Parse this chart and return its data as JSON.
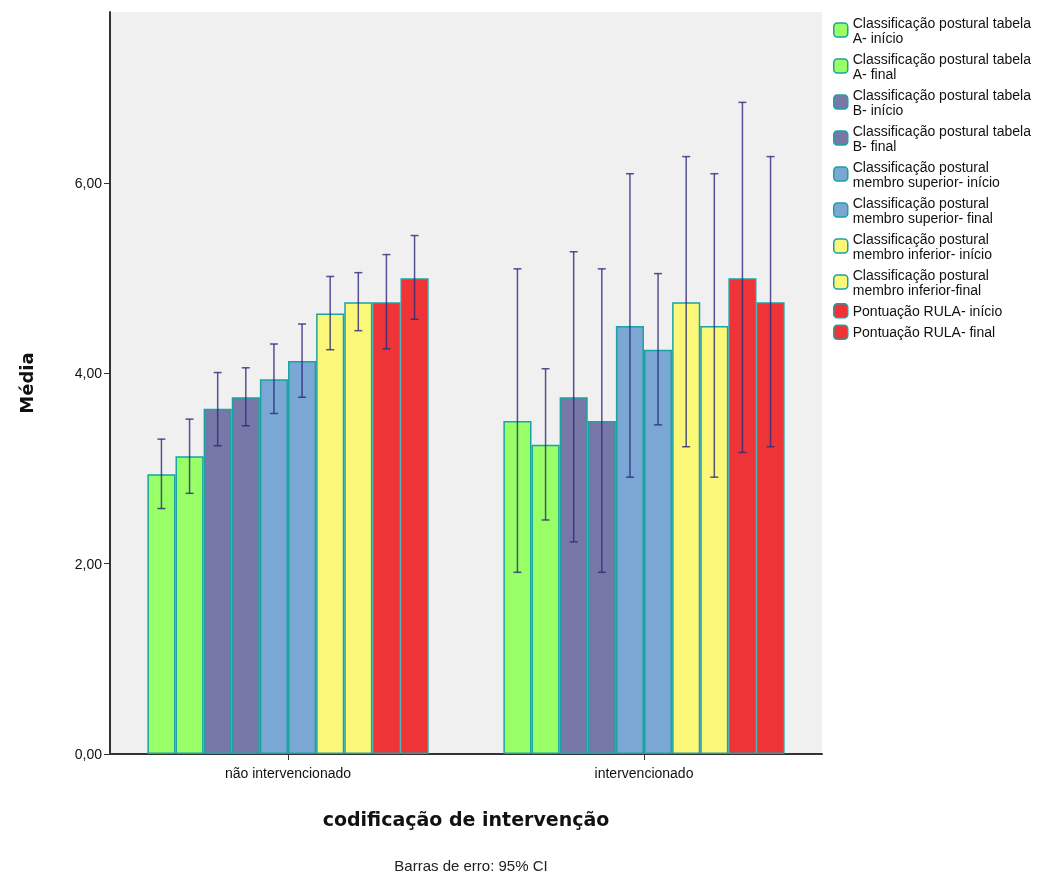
{
  "chart_data": {
    "type": "bar",
    "xlabel": "codificação de intervenção",
    "ylabel": "Média",
    "categories": [
      "não intervencionado",
      "intervencionado"
    ],
    "ylim": [
      0,
      7.8
    ],
    "yticks": [
      {
        "value": 0,
        "label": "0,00"
      },
      {
        "value": 2,
        "label": "2,00"
      },
      {
        "value": 4,
        "label": "4,00"
      },
      {
        "value": 6,
        "label": "6,00"
      }
    ],
    "grid": false,
    "legend": "right",
    "annotations": [
      "Barras de erro: 95% CI"
    ],
    "series": [
      {
        "name": "Classificação postural tabela A- início",
        "color": "#99ff66",
        "values": [
          2.94,
          3.5
        ],
        "errors": [
          [
            2.58,
            3.31
          ],
          [
            1.91,
            5.1
          ]
        ]
      },
      {
        "name": "Classificação postural tabela A- final",
        "color": "#99ff66",
        "values": [
          3.13,
          3.25
        ],
        "errors": [
          [
            2.74,
            3.52
          ],
          [
            2.46,
            4.05
          ]
        ]
      },
      {
        "name": "Classificação postural tabela B- início",
        "color": "#7878a8",
        "values": [
          3.63,
          3.75
        ],
        "errors": [
          [
            3.24,
            4.01
          ],
          [
            2.23,
            5.28
          ]
        ]
      },
      {
        "name": "Classificação postural tabela B- final",
        "color": "#7878a8",
        "values": [
          3.75,
          3.5
        ],
        "errors": [
          [
            3.45,
            4.06
          ],
          [
            1.91,
            5.1
          ]
        ]
      },
      {
        "name": "Classificação postural membro superior- início",
        "color": "#7ba7d4",
        "values": [
          3.94,
          4.5
        ],
        "errors": [
          [
            3.58,
            4.31
          ],
          [
            2.91,
            6.1
          ]
        ]
      },
      {
        "name": "Classificação postural membro superior- final",
        "color": "#7ba7d4",
        "values": [
          4.13,
          4.25
        ],
        "errors": [
          [
            3.75,
            4.52
          ],
          [
            3.46,
            5.05
          ]
        ]
      },
      {
        "name": "Classificação postural membro inferior- início",
        "color": "#fbf779",
        "values": [
          4.63,
          4.75
        ],
        "errors": [
          [
            4.25,
            5.02
          ],
          [
            3.23,
            6.28
          ]
        ]
      },
      {
        "name": "Classificação postural membro inferior-final",
        "color": "#fbf779",
        "values": [
          4.75,
          4.5
        ],
        "errors": [
          [
            4.45,
            5.06
          ],
          [
            2.91,
            6.1
          ]
        ]
      },
      {
        "name": "Pontuação RULA- início",
        "color": "#ef3438",
        "values": [
          4.75,
          5.0
        ],
        "errors": [
          [
            4.26,
            5.25
          ],
          [
            3.17,
            6.85
          ]
        ]
      },
      {
        "name": "Pontuação RULA- final",
        "color": "#ef3438",
        "values": [
          5.0,
          4.75
        ],
        "errors": [
          [
            4.57,
            5.45
          ],
          [
            3.23,
            6.28
          ]
        ]
      }
    ]
  }
}
